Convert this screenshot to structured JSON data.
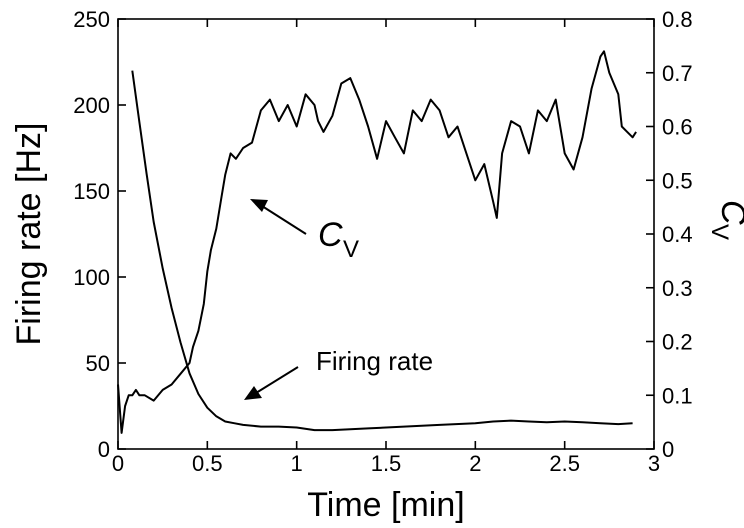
{
  "chart_data": {
    "type": "line",
    "xlabel": "Time [min]",
    "ylabel_left": "Firing rate [Hz]",
    "ylabel_right": {
      "main": "C",
      "sub": "V"
    },
    "xlim": [
      0,
      3
    ],
    "ylim_left": [
      0,
      250
    ],
    "ylim_right": [
      0,
      0.8
    ],
    "xticks": [
      "0",
      "0.5",
      "1",
      "1.5",
      "2",
      "2.5",
      "3"
    ],
    "yticks_left": [
      "0",
      "50",
      "100",
      "150",
      "200",
      "250"
    ],
    "yticks_right": [
      "0",
      "0.1",
      "0.2",
      "0.3",
      "0.4",
      "0.5",
      "0.6",
      "0.7",
      "0.8"
    ],
    "grid": false,
    "annotations": [
      {
        "text_main": "C",
        "text_sub": "V",
        "points_to": "cv_series"
      },
      {
        "text": "Firing rate",
        "points_to": "firing_rate_series"
      }
    ],
    "series": [
      {
        "id": "firing_rate",
        "axis": "left",
        "x": [
          0.08,
          0.12,
          0.16,
          0.2,
          0.25,
          0.3,
          0.35,
          0.4,
          0.45,
          0.5,
          0.55,
          0.6,
          0.65,
          0.7,
          0.8,
          0.9,
          1.0,
          1.1,
          1.2,
          1.4,
          1.6,
          1.8,
          2.0,
          2.1,
          2.2,
          2.3,
          2.4,
          2.5,
          2.6,
          2.7,
          2.8,
          2.88
        ],
        "y": [
          220,
          190,
          160,
          132,
          105,
          82,
          62,
          44,
          32,
          24,
          19,
          16,
          15,
          14,
          13,
          13,
          12.5,
          11,
          11,
          12,
          13,
          14,
          15,
          16,
          16.5,
          16,
          15.5,
          16,
          15.5,
          15,
          14.5,
          15
        ]
      },
      {
        "id": "cv",
        "axis": "right",
        "x": [
          0.0,
          0.02,
          0.04,
          0.06,
          0.08,
          0.1,
          0.12,
          0.15,
          0.2,
          0.25,
          0.3,
          0.35,
          0.4,
          0.42,
          0.45,
          0.48,
          0.5,
          0.52,
          0.55,
          0.58,
          0.6,
          0.63,
          0.66,
          0.7,
          0.75,
          0.8,
          0.85,
          0.9,
          0.95,
          1.0,
          1.05,
          1.1,
          1.12,
          1.15,
          1.2,
          1.25,
          1.3,
          1.35,
          1.4,
          1.45,
          1.5,
          1.55,
          1.6,
          1.65,
          1.7,
          1.75,
          1.8,
          1.85,
          1.9,
          1.95,
          2.0,
          2.05,
          2.1,
          2.12,
          2.15,
          2.2,
          2.25,
          2.3,
          2.35,
          2.4,
          2.45,
          2.5,
          2.55,
          2.6,
          2.65,
          2.7,
          2.72,
          2.75,
          2.8,
          2.82,
          2.85,
          2.88,
          2.9
        ],
        "y": [
          0.12,
          0.03,
          0.08,
          0.1,
          0.1,
          0.11,
          0.1,
          0.1,
          0.09,
          0.11,
          0.12,
          0.14,
          0.16,
          0.19,
          0.22,
          0.27,
          0.33,
          0.37,
          0.41,
          0.47,
          0.51,
          0.55,
          0.54,
          0.56,
          0.57,
          0.63,
          0.65,
          0.61,
          0.64,
          0.6,
          0.66,
          0.64,
          0.61,
          0.59,
          0.62,
          0.68,
          0.69,
          0.65,
          0.6,
          0.54,
          0.61,
          0.58,
          0.55,
          0.63,
          0.61,
          0.65,
          0.63,
          0.58,
          0.6,
          0.55,
          0.5,
          0.53,
          0.46,
          0.43,
          0.55,
          0.61,
          0.6,
          0.55,
          0.63,
          0.61,
          0.65,
          0.55,
          0.52,
          0.58,
          0.67,
          0.73,
          0.74,
          0.7,
          0.66,
          0.6,
          0.59,
          0.58,
          0.59
        ]
      }
    ]
  }
}
